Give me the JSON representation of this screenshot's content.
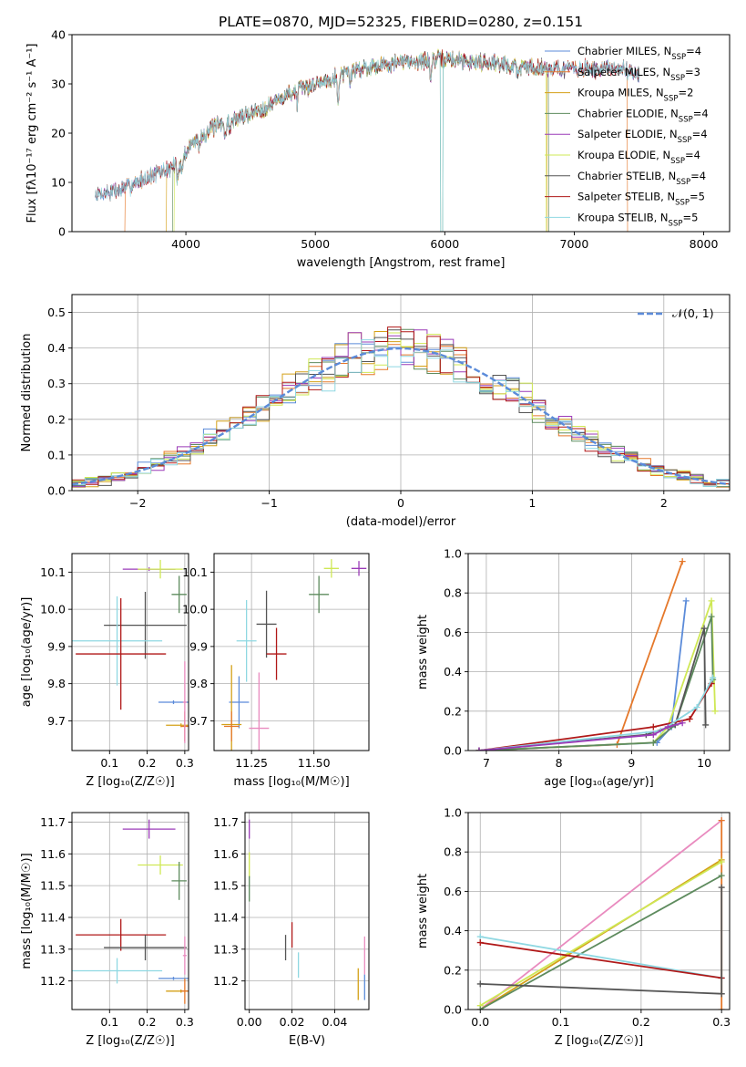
{
  "figure": {
    "title": "PLATE=0870, MJD=52325, FIBERID=0280, z=0.151"
  },
  "colors": {
    "chabrier_miles": "#5b8bd9",
    "salpeter_miles": "#e5782a",
    "kroupa_miles": "#d4a018",
    "chabrier_elodie": "#5e8b5e",
    "salpeter_elodie": "#9b3bb8",
    "kroupa_elodie": "#cfe855",
    "chabrier_stelib": "#555555",
    "salpeter_stelib": "#b01818",
    "kroupa_stelib": "#8fd8e2",
    "pink": "#e98bbf",
    "gauss": "#5b8bd9"
  },
  "legend_entries": [
    {
      "pre": "Chabrier MILES, N",
      "sub": "SSP",
      "post": "=4",
      "color_key": "chabrier_miles"
    },
    {
      "pre": "Salpeter MILES, N",
      "sub": "SSP",
      "post": "=3",
      "color_key": "salpeter_miles"
    },
    {
      "pre": "Kroupa MILES, N",
      "sub": "SSP",
      "post": "=2",
      "color_key": "kroupa_miles"
    },
    {
      "pre": "Chabrier ELODIE, N",
      "sub": "SSP",
      "post": "=4",
      "color_key": "chabrier_elodie"
    },
    {
      "pre": "Salpeter ELODIE, N",
      "sub": "SSP",
      "post": "=4",
      "color_key": "salpeter_elodie"
    },
    {
      "pre": "Kroupa ELODIE, N",
      "sub": "SSP",
      "post": "=4",
      "color_key": "kroupa_elodie"
    },
    {
      "pre": "Chabrier STELIB, N",
      "sub": "SSP",
      "post": "=4",
      "color_key": "chabrier_stelib"
    },
    {
      "pre": "Salpeter STELIB, N",
      "sub": "SSP",
      "post": "=5",
      "color_key": "salpeter_stelib"
    },
    {
      "pre": "Kroupa STELIB, N",
      "sub": "SSP",
      "post": "=5",
      "color_key": "kroupa_stelib"
    }
  ],
  "chart_data": [
    {
      "id": "spectrum",
      "type": "line",
      "xlabel": "wavelength [Angstrom, rest frame]",
      "ylabel": "Flux [fλ10⁻¹⁷ erg cm⁻² s⁻¹ A⁻¹]",
      "xlim": [
        3120,
        8200
      ],
      "ylim": [
        0,
        40
      ],
      "xticks": [
        4000,
        5000,
        6000,
        7000,
        8000
      ],
      "yticks": [
        0,
        10,
        20,
        30,
        40
      ],
      "grid": false,
      "legend_position": "top-right",
      "continuum_knots": [
        [
          3300,
          7.5
        ],
        [
          3500,
          8.5
        ],
        [
          3700,
          11
        ],
        [
          3850,
          12.5
        ],
        [
          3950,
          14
        ],
        [
          4050,
          18
        ],
        [
          4200,
          21
        ],
        [
          4400,
          23
        ],
        [
          4600,
          25
        ],
        [
          4800,
          28
        ],
        [
          5000,
          30
        ],
        [
          5200,
          32
        ],
        [
          5400,
          33.5
        ],
        [
          5700,
          34.5
        ],
        [
          6000,
          35
        ],
        [
          6300,
          34.5
        ],
        [
          6600,
          33.5
        ],
        [
          7000,
          33
        ],
        [
          7400,
          33
        ],
        [
          7500,
          32
        ]
      ],
      "absorption_features": [
        [
          3934,
          3.5
        ],
        [
          3969,
          3
        ],
        [
          4102,
          2
        ],
        [
          4304,
          2.5
        ],
        [
          4340,
          2
        ],
        [
          4861,
          2.5
        ],
        [
          5175,
          6
        ],
        [
          5270,
          2
        ],
        [
          5890,
          4
        ],
        [
          6563,
          2
        ]
      ],
      "edges": [
        {
          "series": "salpeter_miles",
          "start": 3530,
          "end": 7410
        },
        {
          "series": "kroupa_miles",
          "start": 3850,
          "end": 6790
        },
        {
          "series": "chabrier_elodie",
          "start": 3900,
          "end": 6800
        },
        {
          "series": "kroupa_elodie",
          "start": 3910,
          "end": 6780
        }
      ],
      "gap": [
        5965,
        5985
      ]
    },
    {
      "id": "residuals",
      "type": "histogram",
      "xlabel": "(data-model)/error",
      "ylabel": "Normed distribution",
      "xlim": [
        -2.5,
        2.5
      ],
      "ylim": [
        0,
        0.55
      ],
      "xticks": [
        -2,
        -1,
        0,
        1,
        2
      ],
      "yticks": [
        0.0,
        0.1,
        0.2,
        0.3,
        0.4,
        0.5
      ],
      "grid": true,
      "legend_position": "top-right",
      "gauss_label": "𝒩(0, 1)",
      "bin_width": 0.1
    },
    {
      "id": "age_vs_Z",
      "type": "errorbar",
      "xlabel": "Z [log₁₀(Z/Z☉)]",
      "ylabel": "age  [log₁₀(age/yr)]",
      "xlim": [
        0.0,
        0.31
      ],
      "ylim": [
        9.62,
        10.15
      ],
      "xticks": [
        0.1,
        0.2,
        0.3
      ],
      "yticks": [
        9.7,
        9.8,
        9.9,
        10.0,
        10.1
      ],
      "grid": true,
      "points": [
        {
          "c": "salpeter_elodie",
          "x": 0.205,
          "xe": 0.07,
          "y": 10.108,
          "ye": 0.005
        },
        {
          "c": "kroupa_elodie",
          "x": 0.235,
          "xe": 0.06,
          "y": 10.108,
          "ye": 0.025
        },
        {
          "c": "chabrier_elodie",
          "x": 0.285,
          "xe": 0.02,
          "y": 10.04,
          "ye": 0.05
        },
        {
          "c": "chabrier_stelib",
          "x": 0.195,
          "xe": 0.11,
          "y": 9.957,
          "ye": 0.09
        },
        {
          "c": "kroupa_stelib",
          "x": 0.12,
          "xe": 0.12,
          "y": 9.915,
          "ye": 0.12
        },
        {
          "c": "salpeter_stelib",
          "x": 0.13,
          "xe": 0.12,
          "y": 9.88,
          "ye": 0.15
        },
        {
          "c": "chabrier_miles",
          "x": 0.27,
          "xe": 0.04,
          "y": 9.75,
          "ye": 0.005
        },
        {
          "c": "kroupa_miles",
          "x": 0.29,
          "xe": 0.04,
          "y": 9.688,
          "ye": 0.005
        },
        {
          "c": "salpeter_miles",
          "x": 0.3,
          "xe": 0.01,
          "y": 9.685,
          "ye": 0.04
        },
        {
          "c": "pink",
          "x": 0.3,
          "xe": 0.005,
          "y": 9.75,
          "ye": 0.11
        }
      ]
    },
    {
      "id": "age_vs_mass",
      "type": "errorbar",
      "xlabel": "mass [log₁₀(M/M☉)]",
      "ylabel": "",
      "xlim": [
        11.1,
        11.72
      ],
      "ylim": [
        9.62,
        10.15
      ],
      "xticks": [
        11.25,
        11.5
      ],
      "yticks": [
        9.7,
        9.8,
        9.9,
        10.0,
        10.1
      ],
      "grid": true,
      "points": [
        {
          "c": "salpeter_elodie",
          "x": 11.68,
          "xe": 0.03,
          "y": 10.11,
          "ye": 0.02
        },
        {
          "c": "kroupa_elodie",
          "x": 11.57,
          "xe": 0.03,
          "y": 10.11,
          "ye": 0.025
        },
        {
          "c": "chabrier_elodie",
          "x": 11.52,
          "xe": 0.04,
          "y": 10.04,
          "ye": 0.05
        },
        {
          "c": "chabrier_stelib",
          "x": 11.31,
          "xe": 0.04,
          "y": 9.96,
          "ye": 0.09
        },
        {
          "c": "kroupa_stelib",
          "x": 11.23,
          "xe": 0.04,
          "y": 9.915,
          "ye": 0.11
        },
        {
          "c": "salpeter_stelib",
          "x": 11.35,
          "xe": 0.04,
          "y": 9.88,
          "ye": 0.07
        },
        {
          "c": "chabrier_miles",
          "x": 11.2,
          "xe": 0.04,
          "y": 9.75,
          "ye": 0.07
        },
        {
          "c": "kroupa_miles",
          "x": 11.17,
          "xe": 0.04,
          "y": 9.69,
          "ye": 0.16
        },
        {
          "c": "salpeter_miles",
          "x": 11.17,
          "xe": 0.03,
          "y": 9.685,
          "ye": 0.04
        },
        {
          "c": "pink",
          "x": 11.28,
          "xe": 0.04,
          "y": 9.68,
          "ye": 0.15
        }
      ]
    },
    {
      "id": "weight_vs_age",
      "type": "line",
      "xlabel": "age  [log₁₀(age/yr)]",
      "ylabel": "mass weight",
      "xlim": [
        6.75,
        10.35
      ],
      "ylim": [
        0.0,
        1.0
      ],
      "xticks": [
        7,
        8,
        9,
        10
      ],
      "yticks": [
        0.0,
        0.2,
        0.4,
        0.6,
        0.8,
        1.0
      ],
      "grid": true,
      "series": [
        {
          "c": "salpeter_miles",
          "pts": [
            [
              6.9,
              0.0
            ],
            [
              8.8,
              0.03
            ],
            [
              9.7,
              0.96
            ]
          ]
        },
        {
          "c": "chabrier_miles",
          "pts": [
            [
              6.9,
              0.0
            ],
            [
              9.35,
              0.04
            ],
            [
              9.55,
              0.12
            ],
            [
              9.75,
              0.76
            ]
          ]
        },
        {
          "c": "kroupa_elodie",
          "pts": [
            [
              6.9,
              0.0
            ],
            [
              9.3,
              0.04
            ],
            [
              9.5,
              0.12
            ],
            [
              10.1,
              0.76
            ],
            [
              10.15,
              0.2
            ]
          ]
        },
        {
          "c": "chabrier_elodie",
          "pts": [
            [
              6.9,
              0.0
            ],
            [
              9.3,
              0.04
            ],
            [
              9.6,
              0.13
            ],
            [
              10.1,
              0.68
            ],
            [
              10.12,
              0.36
            ]
          ]
        },
        {
          "c": "chabrier_stelib",
          "pts": [
            [
              6.9,
              0.0
            ],
            [
              9.2,
              0.08
            ],
            [
              9.6,
              0.13
            ],
            [
              10.0,
              0.62
            ],
            [
              10.02,
              0.13
            ]
          ]
        },
        {
          "c": "salpeter_stelib",
          "pts": [
            [
              6.9,
              0.0
            ],
            [
              9.3,
              0.12
            ],
            [
              9.8,
              0.16
            ],
            [
              10.1,
              0.34
            ]
          ]
        },
        {
          "c": "kroupa_stelib",
          "pts": [
            [
              6.9,
              0.0
            ],
            [
              9.4,
              0.1
            ],
            [
              9.9,
              0.22
            ],
            [
              10.12,
              0.37
            ]
          ]
        },
        {
          "c": "salpeter_elodie",
          "pts": [
            [
              6.9,
              0.0
            ],
            [
              9.3,
              0.08
            ],
            [
              9.5,
              0.12
            ],
            [
              9.7,
              0.14
            ]
          ]
        }
      ]
    },
    {
      "id": "mass_vs_Z",
      "type": "errorbar",
      "xlabel": "Z [log₁₀(Z/Z☉)]",
      "ylabel": "mass [log₁₀(M/M☉)]",
      "xlim": [
        0.0,
        0.31
      ],
      "ylim": [
        11.11,
        11.73
      ],
      "xticks": [
        0.1,
        0.2,
        0.3
      ],
      "yticks": [
        11.2,
        11.3,
        11.4,
        11.5,
        11.6,
        11.7
      ],
      "grid": true,
      "points": [
        {
          "c": "salpeter_elodie",
          "x": 0.205,
          "xe": 0.07,
          "y": 11.678,
          "ye": 0.03
        },
        {
          "c": "kroupa_elodie",
          "x": 0.235,
          "xe": 0.06,
          "y": 11.565,
          "ye": 0.03
        },
        {
          "c": "chabrier_elodie",
          "x": 0.285,
          "xe": 0.02,
          "y": 11.515,
          "ye": 0.06
        },
        {
          "c": "salpeter_stelib",
          "x": 0.13,
          "xe": 0.12,
          "y": 11.345,
          "ye": 0.05
        },
        {
          "c": "chabrier_stelib",
          "x": 0.195,
          "xe": 0.11,
          "y": 11.305,
          "ye": 0.04
        },
        {
          "c": "kroupa_stelib",
          "x": 0.12,
          "xe": 0.12,
          "y": 11.232,
          "ye": 0.04
        },
        {
          "c": "pink",
          "x": 0.3,
          "xe": 0.005,
          "y": 11.28,
          "ye": 0.06
        },
        {
          "c": "chabrier_miles",
          "x": 0.27,
          "xe": 0.04,
          "y": 11.208,
          "ye": 0.005
        },
        {
          "c": "kroupa_miles",
          "x": 0.29,
          "xe": 0.04,
          "y": 11.168,
          "ye": 0.005
        },
        {
          "c": "salpeter_miles",
          "x": 0.3,
          "xe": 0.01,
          "y": 11.168,
          "ye": 0.04
        }
      ]
    },
    {
      "id": "mass_vs_ebv",
      "type": "errorbar",
      "xlabel": "E(B-V)",
      "ylabel": "",
      "xlim": [
        -0.002,
        0.056
      ],
      "ylim": [
        11.11,
        11.73
      ],
      "xticks": [
        0.0,
        0.02,
        0.04
      ],
      "yticks": [
        11.2,
        11.3,
        11.4,
        11.5,
        11.6,
        11.7
      ],
      "grid": true,
      "points": [
        {
          "c": "salpeter_elodie",
          "x": 0.0,
          "xe": 0.0,
          "y": 11.678,
          "ye": 0.03
        },
        {
          "c": "kroupa_elodie",
          "x": 0.0,
          "xe": 0.0,
          "y": 11.565,
          "ye": 0.04
        },
        {
          "c": "chabrier_elodie",
          "x": 0.0,
          "xe": 0.0,
          "y": 11.49,
          "ye": 0.04
        },
        {
          "c": "salpeter_stelib",
          "x": 0.02,
          "xe": 0.0,
          "y": 11.345,
          "ye": 0.04
        },
        {
          "c": "chabrier_stelib",
          "x": 0.017,
          "xe": 0.0,
          "y": 11.305,
          "ye": 0.04
        },
        {
          "c": "kroupa_stelib",
          "x": 0.023,
          "xe": 0.0,
          "y": 11.25,
          "ye": 0.04
        },
        {
          "c": "pink",
          "x": 0.054,
          "xe": 0.0,
          "y": 11.28,
          "ye": 0.06
        },
        {
          "c": "kroupa_miles",
          "x": 0.051,
          "xe": 0.0,
          "y": 11.19,
          "ye": 0.05
        },
        {
          "c": "chabrier_miles",
          "x": 0.054,
          "xe": 0.0,
          "y": 11.18,
          "ye": 0.04
        }
      ]
    },
    {
      "id": "weight_vs_Z",
      "type": "line",
      "xlabel": "Z [log₁₀(Z/Z☉)]",
      "ylabel": "mass weight",
      "xlim": [
        -0.015,
        0.31
      ],
      "ylim": [
        0.0,
        1.0
      ],
      "xticks": [
        0.0,
        0.1,
        0.2,
        0.3
      ],
      "yticks": [
        0.0,
        0.2,
        0.4,
        0.6,
        0.8,
        1.0
      ],
      "grid": true,
      "series": [
        {
          "c": "pink",
          "pts": [
            [
              0.0,
              0.0
            ],
            [
              0.3,
              0.96
            ]
          ]
        },
        {
          "c": "salpeter_miles",
          "pts": [
            [
              0.3,
              0.0
            ],
            [
              0.3,
              0.96
            ]
          ]
        },
        {
          "c": "kroupa_miles",
          "pts": [
            [
              0.0,
              0.0
            ],
            [
              0.3,
              0.76
            ]
          ]
        },
        {
          "c": "kroupa_elodie",
          "pts": [
            [
              0.0,
              0.02
            ],
            [
              0.3,
              0.75
            ]
          ]
        },
        {
          "c": "chabrier_elodie",
          "pts": [
            [
              0.0,
              0.0
            ],
            [
              0.3,
              0.68
            ]
          ]
        },
        {
          "c": "kroupa_stelib",
          "pts": [
            [
              0.0,
              0.37
            ],
            [
              0.3,
              0.16
            ]
          ]
        },
        {
          "c": "salpeter_stelib",
          "pts": [
            [
              0.0,
              0.34
            ],
            [
              0.3,
              0.16
            ]
          ]
        },
        {
          "c": "chabrier_stelib",
          "pts": [
            [
              0.0,
              0.13
            ],
            [
              0.3,
              0.08
            ]
          ]
        },
        {
          "c": "chabrier_stelib",
          "pts": [
            [
              0.3,
              0.08
            ],
            [
              0.3,
              0.62
            ]
          ]
        }
      ]
    }
  ]
}
